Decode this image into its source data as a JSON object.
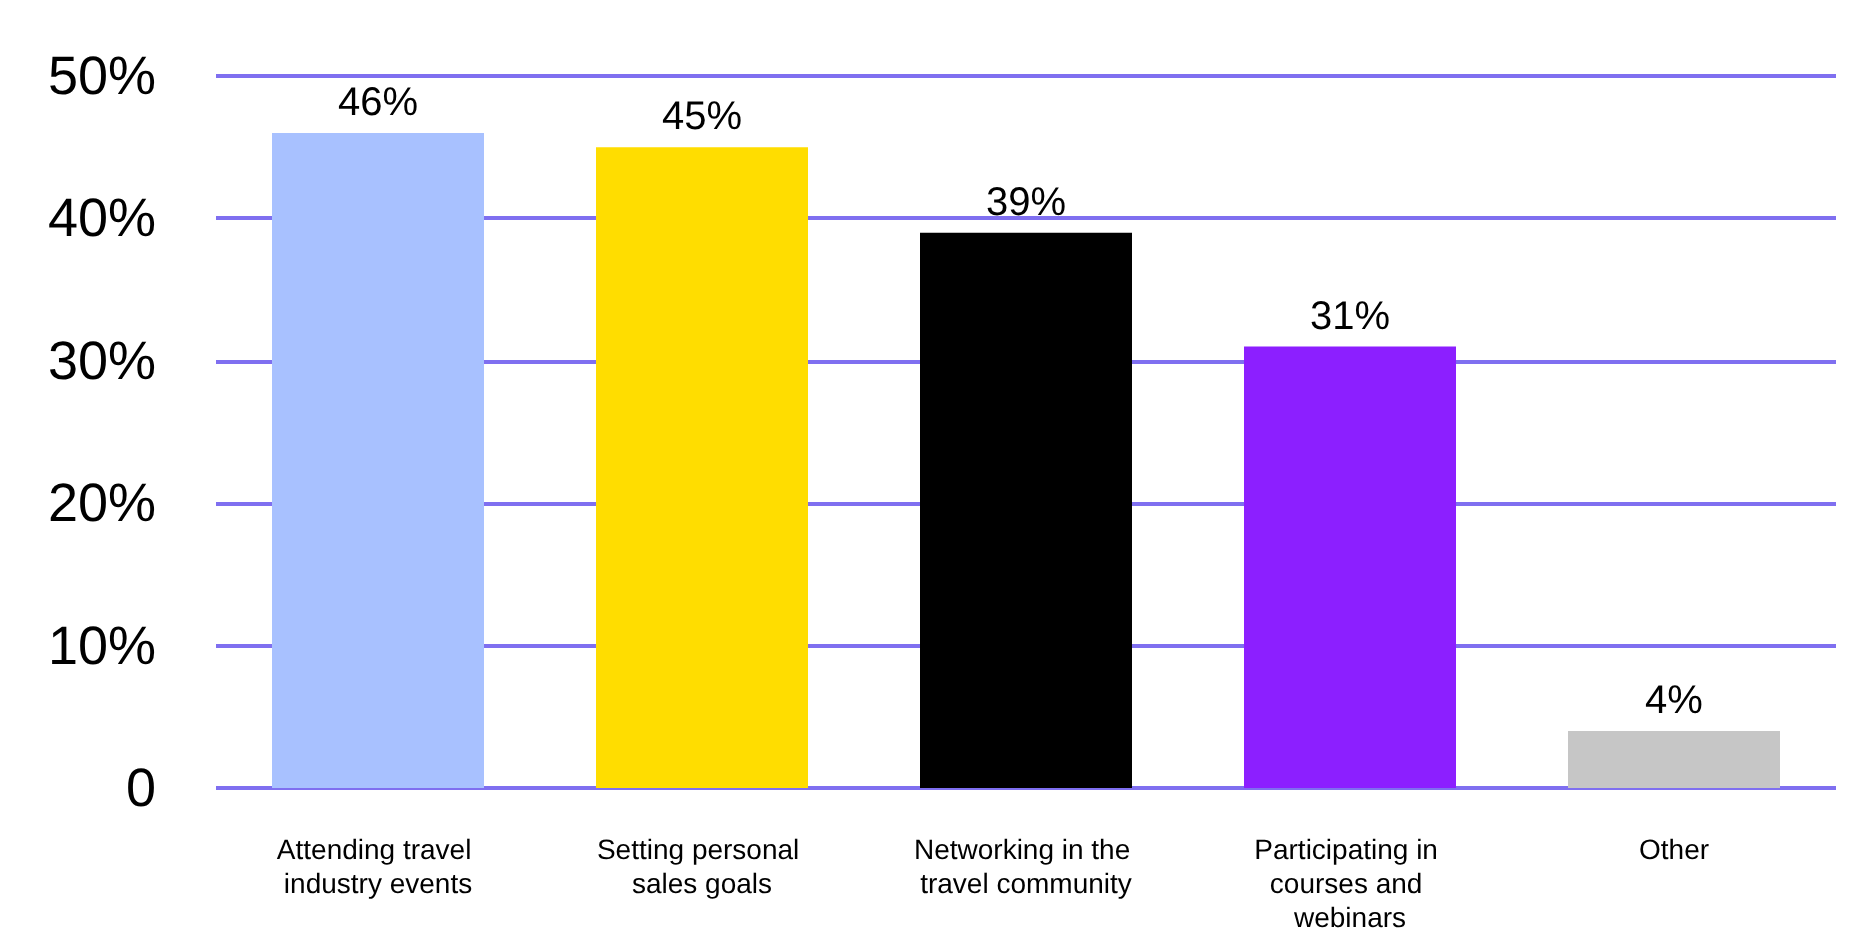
{
  "chart_data": {
    "type": "bar",
    "categories": [
      "Attending travel industry events",
      "Setting personal sales goals",
      "Networking in the travel community",
      "Participating in courses and webinars",
      "Other"
    ],
    "values": [
      46,
      45,
      39,
      31,
      4
    ],
    "colors": [
      "#a8c1ff",
      "#ffdd00",
      "#000000",
      "#8c1fff",
      "#c6c6c6"
    ],
    "value_labels": [
      "46%",
      "45%",
      "39%",
      "31%",
      "4%"
    ],
    "ylim": [
      0,
      50
    ],
    "yticks": [
      0,
      {
        "value": 10,
        "label": "10%"
      },
      {
        "value": 20,
        "label": "20%"
      },
      {
        "value": 30,
        "label": "30%"
      },
      {
        "value": 40,
        "label": "40%"
      },
      {
        "value": 50,
        "label": "50%"
      }
    ],
    "grid": "y"
  }
}
